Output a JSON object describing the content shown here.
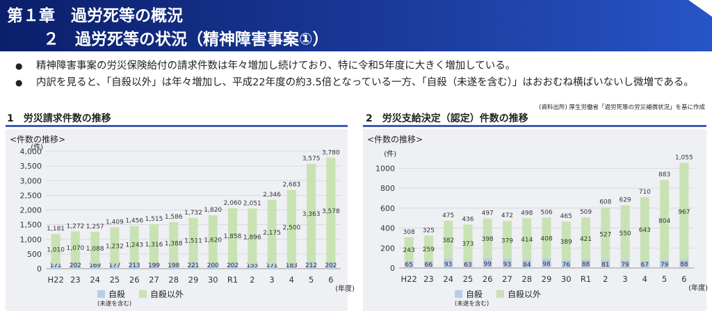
{
  "header": {
    "line1": "第１章　過労死等の概況",
    "line2": "２　過労死等の状況（精神障害事案①）"
  },
  "bullets": [
    "精神障害事案の労災保険給付の請求件数は年々増加し続けており、特に令和5年度に大きく増加している。",
    "内訳を見ると、「自殺以外」は年々増加し、平成22年度の約3.5倍となっている一方、「自殺（未遂を含む）」はおおむね横ばいないし微増である。"
  ],
  "source": "(資料出所) 厚生労働省「過労死等の労災補償状況」を基に作成",
  "sections": [
    {
      "title": "1　労災請求件数の推移"
    },
    {
      "title": "2　労災支給決定（認定）件数の推移"
    }
  ],
  "colors": {
    "suicide": "#b9cde8",
    "other": "#c9e2b3",
    "header": "#0b1f6b",
    "section_line": "#3b5bb3"
  },
  "chart_data": [
    {
      "type": "bar",
      "stacked": true,
      "subtitle": "<件数の推移>",
      "unit": "(件)",
      "xunit": "(年度)",
      "categories": [
        "H22",
        "23",
        "24",
        "25",
        "26",
        "27",
        "28",
        "29",
        "30",
        "R1",
        "2",
        "3",
        "4",
        "5",
        "6"
      ],
      "ylim": [
        0,
        4000
      ],
      "yticks": [
        0,
        500,
        1000,
        1500,
        2000,
        2500,
        3000,
        3500,
        4000
      ],
      "ytick_labels": [
        "0",
        "500",
        "1,000",
        "1,500",
        "2,000",
        "2,500",
        "3,000",
        "3,500",
        "4,000"
      ],
      "series": [
        {
          "name": "自殺",
          "values": [
            171,
            202,
            169,
            177,
            213,
            199,
            198,
            221,
            200,
            202,
            155,
            171,
            183,
            212,
            202
          ]
        },
        {
          "name": "自殺以外",
          "values": [
            1010,
            1070,
            1088,
            1232,
            1243,
            1316,
            1388,
            1511,
            1620,
            1858,
            1896,
            2175,
            2500,
            3363,
            3578
          ]
        }
      ],
      "value_labels": [
        [
          "171",
          "202",
          "169",
          "177",
          "213",
          "199",
          "198",
          "221",
          "200",
          "202",
          "155",
          "171",
          "183",
          "212",
          "202"
        ],
        [
          "1,010",
          "1,070",
          "1,088",
          "1,232",
          "1,243",
          "1,316",
          "1,388",
          "1,511",
          "1,620",
          "1,858",
          "1,896",
          "2,175",
          "2,500",
          "3,363",
          "3,578"
        ]
      ],
      "totals": [
        "1,181",
        "1,272",
        "1,257",
        "1,409",
        "1,456",
        "1,515",
        "1,586",
        "1,732",
        "1,820",
        "2,060",
        "2,051",
        "2,346",
        "2,683",
        "3,575",
        "3,780"
      ],
      "legend": [
        {
          "label": "自殺",
          "note": "(未遂を含む)"
        },
        {
          "label": "自殺以外"
        }
      ]
    },
    {
      "type": "bar",
      "stacked": true,
      "subtitle": "<件数の推移>",
      "unit": "(件)",
      "xunit": "(年度)",
      "categories": [
        "H22",
        "23",
        "24",
        "25",
        "26",
        "27",
        "28",
        "29",
        "30",
        "R1",
        "2",
        "3",
        "4",
        "5",
        "6"
      ],
      "ylim": [
        0,
        1100
      ],
      "yticks": [
        0,
        200,
        400,
        600,
        800,
        1000
      ],
      "ytick_labels": [
        "0",
        "200",
        "400",
        "600",
        "800",
        "1000"
      ],
      "series": [
        {
          "name": "自殺",
          "values": [
            65,
            66,
            93,
            63,
            99,
            93,
            84,
            98,
            76,
            88,
            81,
            79,
            67,
            79,
            88
          ]
        },
        {
          "name": "自殺以外",
          "values": [
            243,
            259,
            382,
            373,
            398,
            379,
            414,
            408,
            389,
            421,
            527,
            550,
            643,
            804,
            967
          ]
        }
      ],
      "value_labels": [
        [
          "65",
          "66",
          "93",
          "63",
          "99",
          "93",
          "84",
          "98",
          "76",
          "88",
          "81",
          "79",
          "67",
          "79",
          "88"
        ],
        [
          "243",
          "259",
          "382",
          "373",
          "398",
          "379",
          "414",
          "408",
          "389",
          "421",
          "527",
          "550",
          "643",
          "804",
          "967"
        ]
      ],
      "totals": [
        "308",
        "325",
        "475",
        "436",
        "497",
        "472",
        "498",
        "506",
        "465",
        "509",
        "608",
        "629",
        "710",
        "883",
        "1,055"
      ],
      "legend": [
        {
          "label": "自殺",
          "note": "(未遂を含む)"
        },
        {
          "label": "自殺以外"
        }
      ]
    }
  ]
}
